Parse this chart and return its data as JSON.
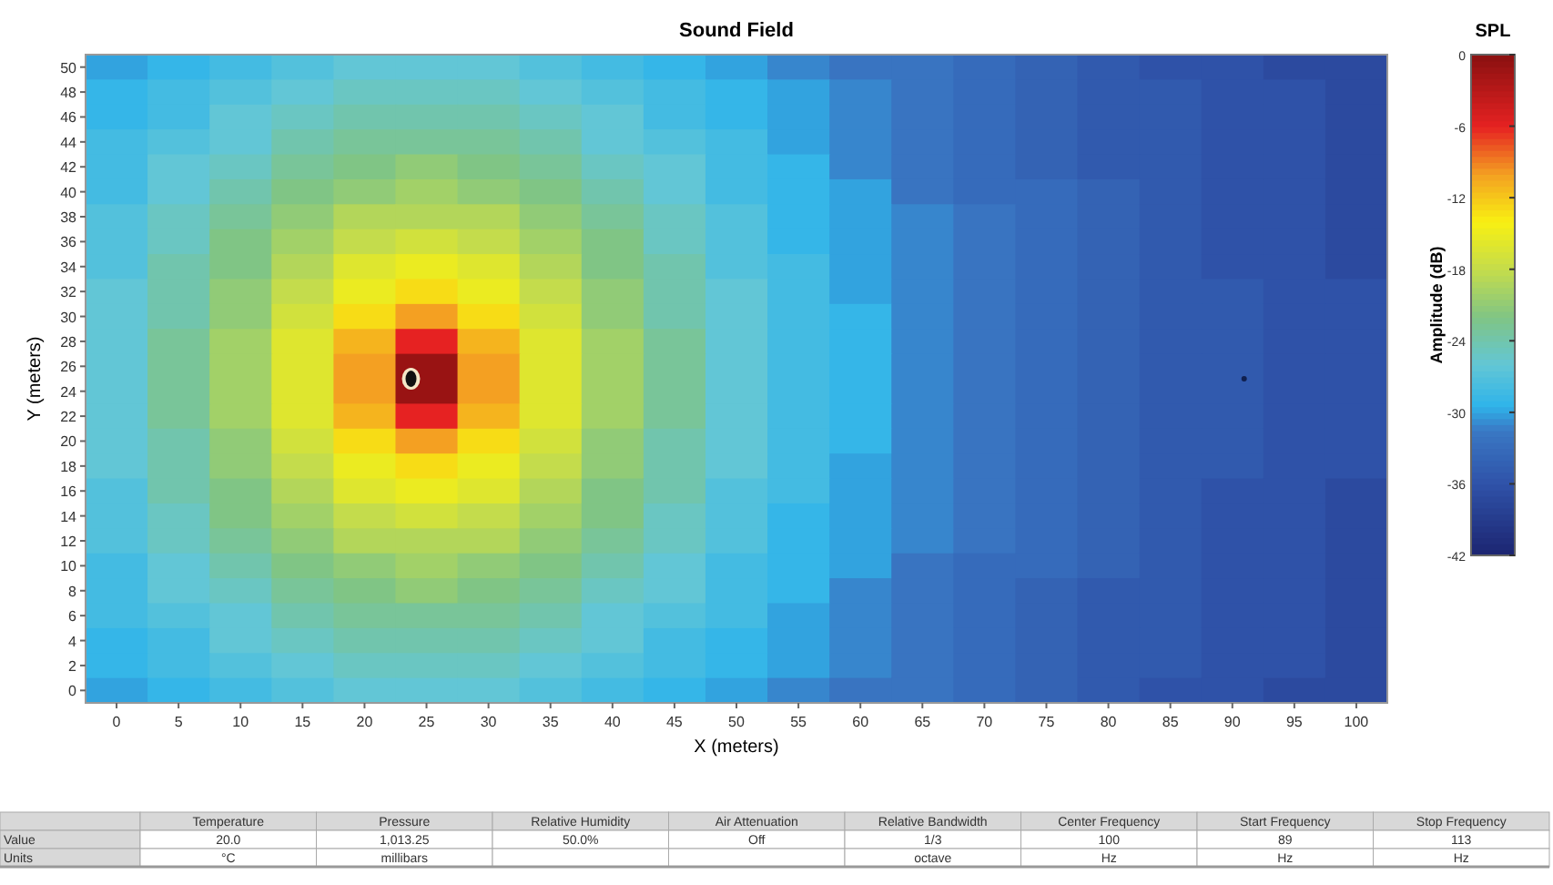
{
  "chart_data": {
    "type": "heatmap",
    "title": "Sound Field",
    "xlabel": "X (meters)",
    "ylabel": "Y (meters)",
    "legend_title": "SPL",
    "clabel": "Amplitude (dB)",
    "categories": [
      "0",
      "5",
      "10",
      "15",
      "20",
      "25",
      "30",
      "35",
      "40",
      "45",
      "50",
      "55",
      "60",
      "65",
      "70",
      "75",
      "80",
      "85",
      "90",
      "95",
      "100"
    ],
    "y_categories": [
      "50",
      "48",
      "46",
      "44",
      "42",
      "40",
      "38",
      "36",
      "34",
      "32",
      "30",
      "28",
      "26",
      "24",
      "22",
      "20",
      "18",
      "16",
      "14",
      "12",
      "10",
      "8",
      "6",
      "4",
      "2",
      "0"
    ],
    "clim": [
      -42,
      0
    ],
    "cticks": [
      0,
      -6,
      -12,
      -18,
      -24,
      -30,
      -36,
      -42
    ],
    "cells": [
      [
        -30,
        -29,
        -28,
        -27,
        -26,
        -26,
        -26,
        -27,
        -28,
        -29,
        -30,
        -31,
        -32,
        -32,
        -33,
        -34,
        -35,
        -36,
        -36,
        -37,
        -37
      ],
      [
        -29,
        -28,
        -27,
        -26,
        -25,
        -25,
        -25,
        -26,
        -27,
        -28,
        -29,
        -30,
        -31,
        -32,
        -33,
        -34,
        -35,
        -35,
        -36,
        -36,
        -37
      ],
      [
        -29,
        -28,
        -26,
        -25,
        -24,
        -24,
        -24,
        -25,
        -26,
        -28,
        -29,
        -30,
        -31,
        -32,
        -33,
        -34,
        -35,
        -35,
        -36,
        -36,
        -37
      ],
      [
        -28,
        -27,
        -26,
        -24,
        -23,
        -23,
        -23,
        -24,
        -26,
        -27,
        -28,
        -30,
        -31,
        -32,
        -33,
        -34,
        -35,
        -35,
        -36,
        -36,
        -37
      ],
      [
        -28,
        -26,
        -25,
        -23,
        -22,
        -21,
        -22,
        -23,
        -25,
        -26,
        -28,
        -29,
        -31,
        -32,
        -33,
        -34,
        -35,
        -35,
        -36,
        -36,
        -37
      ],
      [
        -28,
        -26,
        -24,
        -22,
        -21,
        -20,
        -21,
        -22,
        -24,
        -26,
        -28,
        -29,
        -30,
        -32,
        -33,
        -33,
        -34,
        -35,
        -36,
        -36,
        -37
      ],
      [
        -27,
        -25,
        -23,
        -21,
        -19,
        -19,
        -19,
        -21,
        -23,
        -25,
        -27,
        -29,
        -30,
        -31,
        -32,
        -33,
        -34,
        -35,
        -36,
        -36,
        -37
      ],
      [
        -27,
        -25,
        -22,
        -20,
        -18,
        -17,
        -18,
        -20,
        -22,
        -25,
        -27,
        -29,
        -30,
        -31,
        -32,
        -33,
        -34,
        -35,
        -36,
        -36,
        -37
      ],
      [
        -27,
        -24,
        -22,
        -19,
        -16,
        -15,
        -16,
        -19,
        -22,
        -24,
        -27,
        -28,
        -30,
        -31,
        -32,
        -33,
        -34,
        -35,
        -36,
        -36,
        -37
      ],
      [
        -26,
        -24,
        -21,
        -18,
        -15,
        -13,
        -15,
        -18,
        -21,
        -24,
        -26,
        -28,
        -30,
        -31,
        -32,
        -33,
        -34,
        -35,
        -35,
        -36,
        -36
      ],
      [
        -26,
        -24,
        -21,
        -17,
        -13,
        -10,
        -13,
        -17,
        -21,
        -24,
        -26,
        -28,
        -29,
        -31,
        -32,
        -33,
        -34,
        -35,
        -35,
        -36,
        -36
      ],
      [
        -26,
        -23,
        -20,
        -16,
        -11,
        -6,
        -11,
        -16,
        -20,
        -23,
        -26,
        -28,
        -29,
        -31,
        -32,
        -33,
        -34,
        -35,
        -35,
        -36,
        -36
      ],
      [
        -26,
        -23,
        -20,
        -16,
        -10,
        -1,
        -10,
        -16,
        -20,
        -23,
        -26,
        -28,
        -29,
        -31,
        -32,
        -33,
        -34,
        -35,
        -35,
        -36,
        -36
      ],
      [
        -26,
        -23,
        -20,
        -16,
        -10,
        -1,
        -10,
        -16,
        -20,
        -23,
        -26,
        -28,
        -29,
        -31,
        -32,
        -33,
        -34,
        -35,
        -35,
        -36,
        -36
      ],
      [
        -26,
        -23,
        -20,
        -16,
        -11,
        -6,
        -11,
        -16,
        -20,
        -23,
        -26,
        -28,
        -29,
        -31,
        -32,
        -33,
        -34,
        -35,
        -35,
        -36,
        -36
      ],
      [
        -26,
        -24,
        -21,
        -17,
        -13,
        -10,
        -13,
        -17,
        -21,
        -24,
        -26,
        -28,
        -29,
        -31,
        -32,
        -33,
        -34,
        -35,
        -35,
        -36,
        -36
      ],
      [
        -26,
        -24,
        -21,
        -18,
        -15,
        -13,
        -15,
        -18,
        -21,
        -24,
        -26,
        -28,
        -30,
        -31,
        -32,
        -33,
        -34,
        -35,
        -35,
        -36,
        -36
      ],
      [
        -27,
        -24,
        -22,
        -19,
        -16,
        -15,
        -16,
        -19,
        -22,
        -24,
        -27,
        -28,
        -30,
        -31,
        -32,
        -33,
        -34,
        -35,
        -36,
        -36,
        -37
      ],
      [
        -27,
        -25,
        -22,
        -20,
        -18,
        -17,
        -18,
        -20,
        -22,
        -25,
        -27,
        -29,
        -30,
        -31,
        -32,
        -33,
        -34,
        -35,
        -36,
        -36,
        -37
      ],
      [
        -27,
        -25,
        -23,
        -21,
        -19,
        -19,
        -19,
        -21,
        -23,
        -25,
        -27,
        -29,
        -30,
        -31,
        -32,
        -33,
        -34,
        -35,
        -36,
        -36,
        -37
      ],
      [
        -28,
        -26,
        -24,
        -22,
        -21,
        -20,
        -21,
        -22,
        -24,
        -26,
        -28,
        -29,
        -30,
        -32,
        -33,
        -33,
        -34,
        -35,
        -36,
        -36,
        -37
      ],
      [
        -28,
        -26,
        -25,
        -23,
        -22,
        -21,
        -22,
        -23,
        -25,
        -26,
        -28,
        -29,
        -31,
        -32,
        -33,
        -34,
        -35,
        -35,
        -36,
        -36,
        -37
      ],
      [
        -28,
        -27,
        -26,
        -24,
        -23,
        -23,
        -23,
        -24,
        -26,
        -27,
        -28,
        -30,
        -31,
        -32,
        -33,
        -34,
        -35,
        -35,
        -36,
        -36,
        -37
      ],
      [
        -29,
        -28,
        -26,
        -25,
        -24,
        -24,
        -24,
        -25,
        -26,
        -28,
        -29,
        -30,
        -31,
        -32,
        -33,
        -34,
        -35,
        -35,
        -36,
        -36,
        -37
      ],
      [
        -29,
        -28,
        -27,
        -26,
        -25,
        -25,
        -25,
        -26,
        -27,
        -28,
        -29,
        -30,
        -31,
        -32,
        -33,
        -34,
        -35,
        -35,
        -36,
        -36,
        -37
      ],
      [
        -30,
        -29,
        -28,
        -27,
        -26,
        -26,
        -26,
        -27,
        -28,
        -29,
        -30,
        -31,
        -32,
        -32,
        -33,
        -34,
        -35,
        -36,
        -36,
        -37,
        -37
      ]
    ],
    "annotations": [
      null,
      "Temperature",
      "Pressure",
      "Relative Humidity",
      "Air Attenuation",
      "Relative Bandwidth",
      "Center Frequency",
      "Start Frequency",
      "Stop Frequency",
      "Value",
      "20.0",
      "1,013.25",
      "50.0%",
      "Off",
      "1/3",
      "100",
      "89",
      "113",
      "Units",
      "°C",
      "millibars",
      null,
      null,
      "octave",
      "Hz",
      "Hz",
      "Hz"
    ]
  }
}
